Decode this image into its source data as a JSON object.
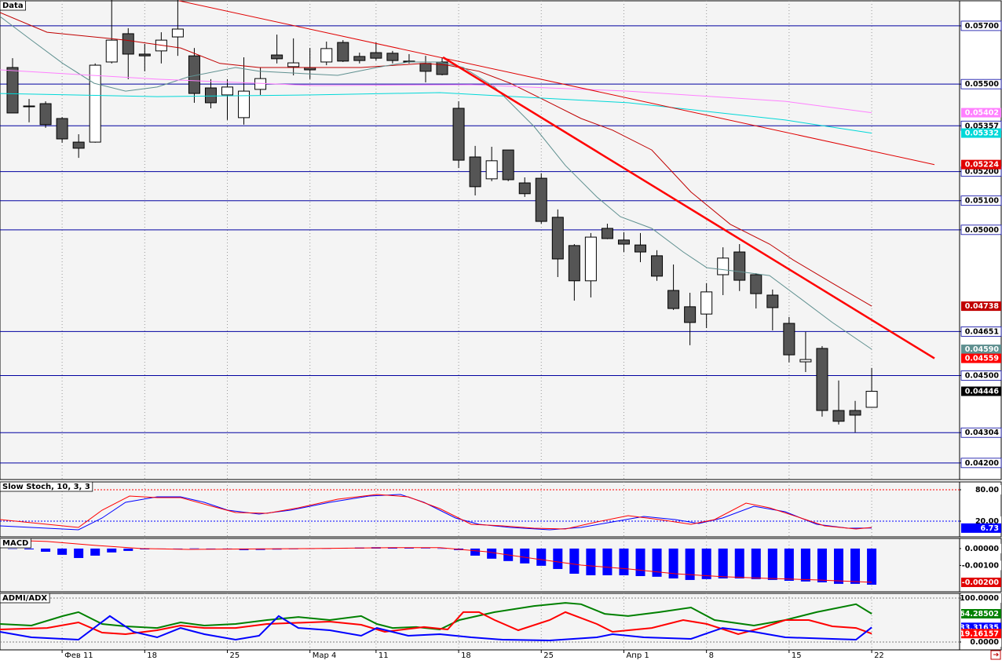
{
  "chart_data": [
    {
      "type": "candlestick",
      "title": "Data",
      "categories": [
        null,
        null,
        null,
        "Фев 11",
        null,
        null,
        null,
        null,
        "18",
        null,
        null,
        null,
        null,
        "25",
        null,
        null,
        null,
        null,
        "Мар 4",
        null,
        null,
        null,
        "11",
        null,
        null,
        null,
        null,
        "18",
        null,
        null,
        null,
        null,
        "25",
        null,
        null,
        null,
        null,
        "Апр 1",
        null,
        null,
        null,
        null,
        "8",
        null,
        null,
        null,
        null,
        "15",
        null,
        null,
        null,
        null,
        "22"
      ],
      "xlim": [
        -0.76,
        57.32
      ],
      "open": [
        0.05557,
        0.05425,
        0.05433,
        0.05382,
        0.05301,
        0.05301,
        0.05576,
        0.05673,
        0.05603,
        0.05614,
        0.05662,
        0.05597,
        0.05487,
        0.05463,
        0.05385,
        0.05482,
        0.056,
        0.0556,
        0.05557,
        0.05576,
        0.05643,
        0.05595,
        0.05608,
        0.05606,
        0.05579,
        0.05571,
        0.05576,
        0.05417,
        0.0525,
        0.05175,
        0.05274,
        0.05161,
        0.05177,
        0.05043,
        0.04946,
        0.04825,
        0.05005,
        0.04965,
        0.04948,
        0.04911,
        0.04792,
        0.04736,
        0.04711,
        0.04846,
        0.04924,
        0.04846,
        0.04776,
        0.04679,
        0.04547,
        0.04593,
        0.0438,
        0.0438,
        0.04391
      ],
      "high": [
        0.05589,
        0.05449,
        0.05441,
        0.05387,
        0.05328,
        0.05571,
        0.0579,
        0.05692,
        0.05638,
        0.05678,
        0.0579,
        0.05624,
        0.05517,
        0.05517,
        0.05592,
        0.05557,
        0.0567,
        0.05657,
        0.05624,
        0.05646,
        0.05651,
        0.05608,
        0.05643,
        0.05614,
        0.05603,
        0.05597,
        0.05592,
        0.05441,
        0.05288,
        0.05285,
        0.05274,
        0.0518,
        0.05194,
        0.0507,
        0.04951,
        0.04989,
        0.05021,
        0.04992,
        0.04989,
        0.0493,
        0.04881,
        0.04784,
        0.04817,
        0.0494,
        0.04951,
        0.04851,
        0.04795,
        0.04701,
        0.0465,
        0.04601,
        0.04483,
        0.04413,
        0.04526
      ],
      "low": [
        0.05401,
        0.05369,
        0.0535,
        0.05299,
        0.05247,
        0.05299,
        0.05571,
        0.05517,
        0.05544,
        0.05571,
        0.05597,
        0.05436,
        0.05417,
        0.05377,
        0.05361,
        0.05463,
        0.05571,
        0.0553,
        0.05517,
        0.05565,
        0.05576,
        0.05571,
        0.05581,
        0.05571,
        0.05571,
        0.05506,
        0.0553,
        0.05212,
        0.05118,
        0.05167,
        0.05167,
        0.05113,
        0.05021,
        0.04838,
        0.04757,
        0.04768,
        0.04968,
        0.04924,
        0.04889,
        0.04825,
        0.04725,
        0.04604,
        0.04663,
        0.04776,
        0.0479,
        0.0473,
        0.04655,
        0.04545,
        0.04512,
        0.04359,
        0.04332,
        0.04305,
        0.0439
      ],
      "close": [
        0.05401,
        0.05424,
        0.05361,
        0.05312,
        0.0528,
        0.05565,
        0.05651,
        0.05603,
        0.05597,
        0.05651,
        0.05689,
        0.05468,
        0.05436,
        0.0549,
        0.05476,
        0.05519,
        0.05587,
        0.05573,
        0.05549,
        0.05622,
        0.05579,
        0.05581,
        0.05589,
        0.05581,
        0.05576,
        0.05544,
        0.05533,
        0.05239,
        0.05148,
        0.05237,
        0.05172,
        0.05124,
        0.05029,
        0.049,
        0.04825,
        0.04975,
        0.0497,
        0.04951,
        0.04924,
        0.04841,
        0.0473,
        0.04682,
        0.04787,
        0.04903,
        0.04827,
        0.04781,
        0.04733,
        0.04571,
        0.04555,
        0.0438,
        0.04343,
        0.04364,
        0.04446
      ],
      "up_color": "#ffffff",
      "down_color": "#555555",
      "ylim": [
        0.04143,
        0.05786
      ],
      "yticks": [
        {
          "value": 0.057,
          "label": "0.05700"
        },
        {
          "value": 0.055,
          "label": "0.05500"
        },
        {
          "value": 0.05357,
          "label": "0.05357"
        },
        {
          "value": 0.052,
          "label": "0.05200"
        },
        {
          "value": 0.051,
          "label": "0.05100"
        },
        {
          "value": 0.05,
          "label": "0.05000"
        },
        {
          "value": 0.04651,
          "label": "0.04651"
        },
        {
          "value": 0.045,
          "label": "0.04500"
        },
        {
          "value": 0.04304,
          "label": "0.04304"
        },
        {
          "value": 0.042,
          "label": "0.04200"
        }
      ],
      "grid_color": "#0000a0",
      "markers": [
        {
          "value": 0.05402,
          "label": "0.05402",
          "color": "#ff80ff"
        },
        {
          "value": 0.05332,
          "label": "0.05332",
          "color": "#00d8d8"
        },
        {
          "value": 0.05224,
          "label": "0.05224",
          "color": "#e00000"
        },
        {
          "value": 0.04738,
          "label": "0.04738",
          "color": "#c00000"
        },
        {
          "value": 0.0459,
          "label": "0.04590",
          "color": "#5f9090"
        },
        {
          "value": 0.04559,
          "label": "0.04559",
          "color": "#ff0000"
        },
        {
          "value": 0.04446,
          "label": "0.04446",
          "color": "#000000"
        }
      ],
      "series": [
        {
          "color": "#c00000",
          "width": 1,
          "x": [
            -0.76,
            2.09,
            6.84,
            10.17,
            12.55,
            14.92,
            21.1,
            24.9,
            26.33,
            28.23,
            30.13,
            32.51,
            34.41,
            36.31,
            38.69,
            41.06,
            43.44,
            45.82,
            47.24,
            49.62,
            52
          ],
          "values": [
            0.05746,
            0.05678,
            0.05651,
            0.05624,
            0.05571,
            0.05557,
            0.05557,
            0.05571,
            0.05565,
            0.05544,
            0.05503,
            0.05436,
            0.05382,
            0.05342,
            0.05274,
            0.0513,
            0.05019,
            0.04951,
            0.04897,
            0.04817,
            0.04738
          ]
        },
        {
          "color": "#5f9090",
          "width": 1,
          "x": [
            -0.76,
            1.14,
            3.04,
            4.94,
            6.84,
            8.75,
            10.65,
            13.5,
            14.92,
            19.68,
            22.05,
            23.95,
            25.86,
            27.28,
            29.18,
            31.56,
            33.46,
            35.36,
            36.79,
            38.69,
            40.59,
            42.02,
            43.92,
            45.82,
            47.72,
            49.62,
            52
          ],
          "values": [
            0.05732,
            0.05651,
            0.05571,
            0.05503,
            0.05476,
            0.0549,
            0.05525,
            0.05557,
            0.05544,
            0.0553,
            0.05557,
            0.05576,
            0.05576,
            0.05557,
            0.0549,
            0.05355,
            0.05221,
            0.05113,
            0.05045,
            0.05005,
            0.04924,
            0.0487,
            0.04857,
            0.04843,
            0.04763,
            0.04682,
            0.0459
          ]
        },
        {
          "color": "#ff80ff",
          "width": 1,
          "x": [
            -0.76,
            8.75,
            18.25,
            27.76,
            37.26,
            46.77,
            52
          ],
          "values": [
            0.05549,
            0.05517,
            0.05495,
            0.05498,
            0.05476,
            0.05441,
            0.05402
          ]
        },
        {
          "color": "#00d8d8",
          "width": 1,
          "x": [
            -0.76,
            8.75,
            18.25,
            25.86,
            37.26,
            46.77,
            52
          ],
          "values": [
            0.05468,
            0.05457,
            0.05463,
            0.05471,
            0.05436,
            0.05377,
            0.05332
          ]
        },
        {
          "color": "#e00000",
          "width": 1,
          "x": [
            10.08,
            55.8
          ],
          "values": [
            0.05786,
            0.05224
          ]
        },
        {
          "color": "#ff0000",
          "width": 2.5,
          "x": [
            26.05,
            55.8
          ],
          "values": [
            0.05592,
            0.04559
          ]
        }
      ]
    },
    {
      "type": "line",
      "title": "Slow Stoch, 10, 3, 3",
      "ylim": [
        -10,
        95
      ],
      "yticks": [
        {
          "value": 80,
          "label": "80.00"
        },
        {
          "value": 20,
          "label": "20.00"
        }
      ],
      "level_colors": [
        "#ff0000",
        "#0000ff"
      ],
      "markers": [
        {
          "value": 6.73,
          "label": "6.73",
          "color": "#0000ff"
        }
      ],
      "series": [
        {
          "color": "#0000ff",
          "width": 1,
          "x": [
            -0.76,
            3.99,
            5.42,
            6.84,
            8.75,
            10.17,
            11.6,
            13.02,
            14.92,
            16.83,
            19.2,
            21.58,
            23.48,
            24.9,
            26.81,
            28.23,
            30.13,
            32.51,
            34.41,
            36.31,
            38.21,
            40.11,
            41.54,
            42.97,
            44.87,
            46.77,
            48.67,
            50.57,
            52
          ],
          "values": [
            11,
            3.5,
            26,
            56,
            66.5,
            66.5,
            56,
            41,
            33.5,
            41,
            56,
            68,
            71,
            56,
            26,
            14,
            8,
            3.5,
            8,
            18.5,
            29,
            23,
            15.5,
            26,
            48.5,
            38,
            14,
            6.5,
            6.73
          ]
        },
        {
          "color": "#ff0000",
          "width": 1,
          "x": [
            -0.76,
            3.99,
            5.42,
            7.08,
            8.75,
            10.17,
            12.07,
            13.5,
            15.4,
            17.3,
            19.68,
            22.05,
            23.95,
            25.86,
            27.76,
            29.66,
            31.56,
            33.46,
            35.36,
            37.26,
            39.16,
            41.06,
            42.49,
            44.39,
            45.82,
            47.72,
            49.14,
            51.05,
            52
          ],
          "values": [
            23,
            8,
            41,
            68,
            65,
            65,
            48.5,
            36.5,
            35,
            45.5,
            62,
            71,
            66.5,
            44,
            14,
            11,
            6.5,
            5,
            18.5,
            30.5,
            23,
            14,
            23,
            54.5,
            45.5,
            26,
            11,
            5,
            8
          ]
        }
      ]
    },
    {
      "type": "macd",
      "title": "MACD",
      "ylim": [
        -0.00256,
        0.0006
      ],
      "yticks": [
        {
          "value": 0,
          "label": "0.00000"
        },
        {
          "value": -0.001,
          "label": "-0.00100"
        }
      ],
      "markers": [
        {
          "value": -0.002,
          "label": "-0.00200",
          "color": "#e00000"
        }
      ],
      "bar_color": "#0000ff",
      "values": [
        0,
        -5e-05,
        -0.00019,
        -0.00037,
        -0.00056,
        -0.00042,
        -0.00023,
        -0.00014,
        -5e-05,
        -2e-05,
        -1e-05,
        1e-05,
        -4e-05,
        -5e-05,
        -9e-05,
        -8e-05,
        -6e-05,
        -4e-05,
        -2e-05,
        1e-05,
        3e-05,
        6e-05,
        8e-05,
        7e-05,
        4e-05,
        2e-05,
        1e-05,
        -9e-05,
        -0.00042,
        -0.0006,
        -0.00074,
        -0.00088,
        -0.00102,
        -0.00121,
        -0.00149,
        -0.00158,
        -0.00158,
        -0.00158,
        -0.00163,
        -0.00167,
        -0.00177,
        -0.00186,
        -0.00181,
        -0.00177,
        -0.00177,
        -0.00181,
        -0.00186,
        -0.00191,
        -0.00195,
        -0.002,
        -0.00209,
        -0.00209,
        -0.00214
      ],
      "series": [
        {
          "color": "#ff0000",
          "width": 1,
          "x": [
            -0.76,
            2.09,
            4.94,
            7.79,
            10.65,
            18.25,
            23,
            25.86,
            28.71,
            31.56,
            34.41,
            37.26,
            40.11,
            42.97,
            45.82,
            48.67,
            52
          ],
          "values": [
            0.00051,
            0.00042,
            0.00019,
            0,
            -5e-05,
            0,
            5e-05,
            5e-05,
            -0.00019,
            -0.0006,
            -0.00098,
            -0.00121,
            -0.00149,
            -0.00167,
            -0.00177,
            -0.00186,
            -0.002
          ]
        }
      ]
    },
    {
      "type": "line",
      "title": "ADMI/ADX",
      "ylim": [
        -17.9,
        110.7
      ],
      "yticks": [
        {
          "value": 100,
          "label": "100.0000"
        },
        {
          "value": 0,
          "label": "0.0000"
        }
      ],
      "level_colors": [
        "#808080",
        "#808080"
      ],
      "markers": [
        {
          "value": 64.28502,
          "label": "64.28502",
          "color": "#008000"
        },
        {
          "value": 33.31635,
          "label": "33.31635",
          "color": "#0000ff"
        },
        {
          "value": 19.16157,
          "label": "19.16157",
          "color": "#ff0000"
        }
      ],
      "series": [
        {
          "color": "#008000",
          "width": 2,
          "x": [
            -0.76,
            1.14,
            3.04,
            3.99,
            5.42,
            6.84,
            8.75,
            10.17,
            11.6,
            13.5,
            15.4,
            17.3,
            19.2,
            21.1,
            22.05,
            23,
            24.43,
            25.86,
            27.04,
            29.18,
            31.56,
            33.46,
            34.41,
            35.84,
            37.26,
            39.16,
            41.06,
            42.49,
            44.87,
            46.77,
            48.67,
            51.05,
            52
          ],
          "values": [
            41,
            37.5,
            59,
            68,
            41,
            35.7,
            32,
            44.6,
            37.5,
            41,
            50,
            57,
            50,
            59,
            41,
            32,
            34,
            28.6,
            50,
            68,
            82,
            89,
            86,
            64,
            59,
            68,
            78.6,
            50,
            37.5,
            50,
            68,
            86,
            64.28502
          ]
        },
        {
          "color": "#ff0000",
          "width": 2,
          "x": [
            -0.76,
            2.09,
            3.99,
            5.42,
            6.84,
            8.75,
            10.17,
            11.6,
            13.5,
            15.4,
            19.2,
            21.1,
            22.53,
            24.9,
            26.33,
            27.28,
            28.23,
            29.18,
            30.61,
            32.51,
            33.46,
            35.36,
            36.31,
            38.69,
            40.59,
            42.02,
            43.92,
            45.34,
            46.77,
            48.19,
            49.62,
            51.05,
            52
          ],
          "values": [
            28.6,
            32,
            44.6,
            21.4,
            17.9,
            26.8,
            37.5,
            32,
            32,
            41,
            46.4,
            39.3,
            23.2,
            34,
            28.6,
            68,
            68,
            50,
            26.8,
            50,
            68,
            41,
            23.2,
            32,
            50,
            41,
            17.9,
            32,
            50,
            50,
            35.7,
            32,
            19.16157
          ]
        },
        {
          "color": "#0000ff",
          "width": 2,
          "x": [
            -0.76,
            1.14,
            3.99,
            5.89,
            7.32,
            8.75,
            10.17,
            11.6,
            13.5,
            14.92,
            16.11,
            17.3,
            19.2,
            21.1,
            22.05,
            23.95,
            25.86,
            27.76,
            29.66,
            32.51,
            35.36,
            36.31,
            38.21,
            41.06,
            42.97,
            44.87,
            46.77,
            49.62,
            51.05,
            52
          ],
          "values": [
            23.2,
            10.7,
            5.4,
            59,
            23.2,
            10.7,
            32,
            17.9,
            5.4,
            14.3,
            59,
            32,
            26.8,
            14.3,
            32,
            14.3,
            17.9,
            10.7,
            5.4,
            3.6,
            10.7,
            17.9,
            10.7,
            7.1,
            32,
            23.2,
            10.7,
            7.1,
            5.4,
            33.31635
          ]
        }
      ]
    }
  ]
}
